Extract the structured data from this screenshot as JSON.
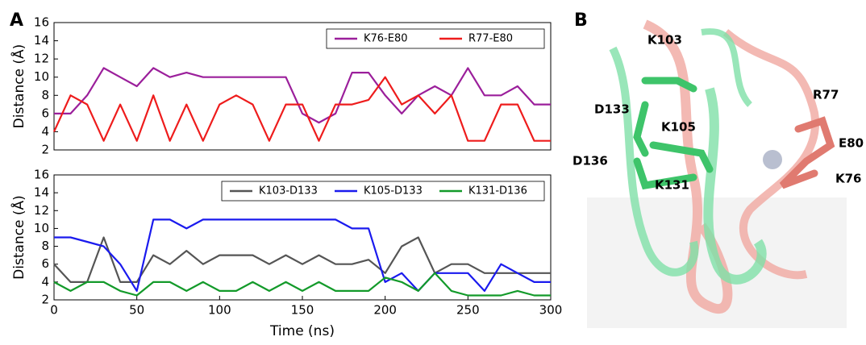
{
  "panel_labels": [
    "A",
    "B"
  ],
  "chart_data": [
    {
      "type": "line",
      "ylabel": "Distance (Å)",
      "x": [
        0,
        10,
        20,
        30,
        40,
        50,
        60,
        70,
        80,
        90,
        100,
        110,
        120,
        130,
        140,
        150,
        160,
        170,
        180,
        190,
        200,
        210,
        220,
        230,
        240,
        250,
        260,
        270,
        280,
        290,
        300
      ],
      "series": [
        {
          "name": "K76-E80",
          "color": "#9b1f9b",
          "values": [
            6,
            6,
            8,
            11,
            10,
            9,
            11,
            10,
            10.5,
            10,
            10,
            10,
            10,
            10,
            10,
            6,
            5,
            6,
            10.5,
            10.5,
            8,
            6,
            8,
            9,
            8,
            11,
            8,
            8,
            9,
            7,
            7
          ]
        },
        {
          "name": "R77-E80",
          "color": "#ee1c1c",
          "values": [
            4,
            8,
            7,
            3,
            7,
            3,
            8,
            3,
            7,
            3,
            7,
            8,
            7,
            3,
            7,
            7,
            3,
            7,
            7,
            7.5,
            10,
            7,
            8,
            6,
            8,
            3,
            3,
            7,
            7,
            3,
            3
          ]
        }
      ],
      "xlim": [
        0,
        300
      ],
      "ylim": [
        2,
        16
      ],
      "yticks": [
        2,
        4,
        6,
        8,
        10,
        12,
        14,
        16
      ],
      "legend": "upper right"
    },
    {
      "type": "line",
      "ylabel": "Distance (Å)",
      "xlabel": "Time (ns)",
      "x": [
        0,
        10,
        20,
        30,
        40,
        50,
        60,
        70,
        80,
        90,
        100,
        110,
        120,
        130,
        140,
        150,
        160,
        170,
        180,
        190,
        200,
        210,
        220,
        230,
        240,
        250,
        260,
        270,
        280,
        290,
        300
      ],
      "series": [
        {
          "name": "K103-D133",
          "color": "#555555",
          "values": [
            6,
            4,
            4,
            9,
            4,
            4,
            7,
            6,
            7.5,
            6,
            7,
            7,
            7,
            6,
            7,
            6,
            7,
            6,
            6,
            6.5,
            5,
            8,
            9,
            5,
            6,
            6,
            5,
            5,
            5,
            5,
            5
          ]
        },
        {
          "name": "K105-D133",
          "color": "#1a1aee",
          "values": [
            9,
            9,
            8.5,
            8,
            6,
            3,
            11,
            11,
            10,
            11,
            11,
            11,
            11,
            11,
            11,
            11,
            11,
            11,
            10,
            10,
            4,
            5,
            3,
            5,
            5,
            5,
            3,
            6,
            5,
            4,
            4
          ]
        },
        {
          "name": "K131-D136",
          "color": "#139a2a",
          "values": [
            4,
            3,
            4,
            4,
            3,
            2.5,
            4,
            4,
            3,
            4,
            3,
            3,
            4,
            3,
            4,
            3,
            4,
            3,
            3,
            3,
            4.5,
            4,
            3,
            5,
            3,
            2.5,
            2.5,
            2.5,
            3,
            2.5,
            2.5
          ]
        }
      ],
      "xlim": [
        0,
        300
      ],
      "xticks": [
        0,
        50,
        100,
        150,
        200,
        250,
        300
      ],
      "ylim": [
        2,
        16
      ],
      "yticks": [
        2,
        4,
        6,
        8,
        10,
        12,
        14,
        16
      ],
      "legend": "upper right"
    }
  ],
  "structure_labels": [
    "K103",
    "D133",
    "K105",
    "D136",
    "K131",
    "R77",
    "E80",
    "K76"
  ]
}
